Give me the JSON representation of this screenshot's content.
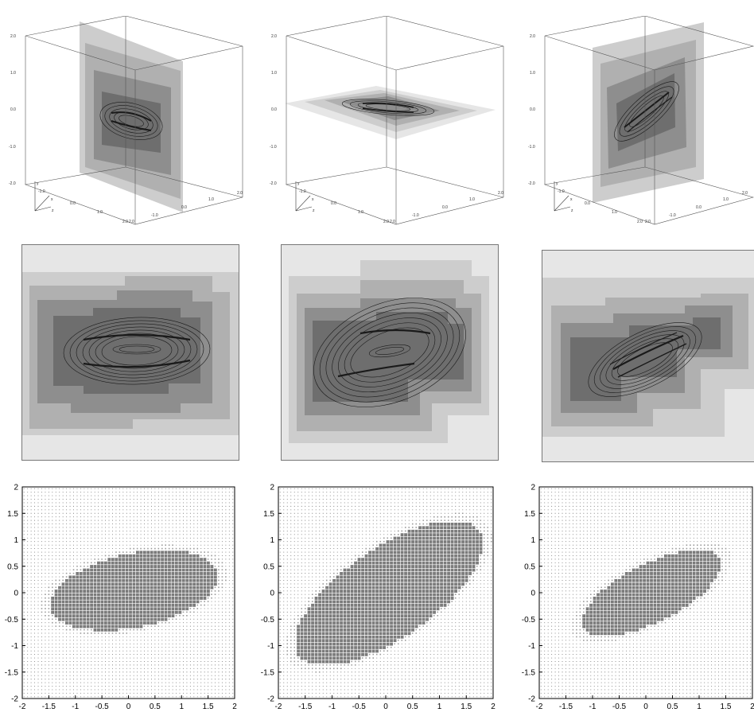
{
  "figure": {
    "rows": [
      {
        "row": "3d-slice-views",
        "panels": 3
      },
      {
        "row": "contour-slice-views",
        "panels": 3
      },
      {
        "row": "dot-density-plots",
        "panels": 3
      }
    ]
  },
  "axis3d": {
    "y_label": "y",
    "x_label": "x",
    "z_label": "z",
    "vertical_ticks": [
      "2.0",
      "1.0",
      "0.0",
      "-1.0",
      "-2.0"
    ],
    "depth_ticks": [
      "-1.0",
      "0.0",
      "1.0",
      "2.0"
    ],
    "front_ticks": [
      "-1.0",
      "0.0",
      "1.0",
      "2.0"
    ],
    "corner_label": "2.0",
    "corner_label2": "2.0"
  },
  "colors": {
    "shade_1": "#e6e6e6",
    "shade_2": "#cdcdcd",
    "shade_3": "#b0b0b0",
    "shade_4": "#8e8e8e",
    "shade_5": "#6e6e6e",
    "contour": "#1a1a1a",
    "dot_light": "#777777",
    "blob": "#7b7b7b"
  },
  "chart_data": [
    {
      "type": "scatter",
      "panel": "bottom-left",
      "xlim": [
        -2,
        2
      ],
      "ylim": [
        -2,
        2
      ],
      "x_ticks": [
        "-2",
        "-1.5",
        "-1",
        "-0.5",
        "0",
        "0.5",
        "1",
        "1.5",
        "2"
      ],
      "y_ticks": [
        "2",
        "1.5",
        "1",
        "0.5",
        "0",
        "-0.5",
        "-1",
        "-1.5",
        "-2"
      ],
      "dense_region": {
        "center": [
          0.1,
          0.05
        ],
        "semi_axes": [
          1.6,
          0.7
        ],
        "angle_deg": 12
      },
      "halo_scale": 1.12,
      "grid": false
    },
    {
      "type": "scatter",
      "panel": "bottom-middle",
      "xlim": [
        -2,
        2
      ],
      "ylim": [
        -2,
        2
      ],
      "x_ticks": [
        "-2",
        "-1.5",
        "-1",
        "-0.5",
        "0",
        "0.5",
        "1",
        "1.5",
        "2"
      ],
      "y_ticks": [
        "2",
        "1.5",
        "1",
        "0.5",
        "0",
        "-0.5",
        "-1",
        "-1.5",
        "-2"
      ],
      "dense_region": {
        "center": [
          0.05,
          0.0
        ],
        "semi_axes": [
          2.05,
          0.85
        ],
        "angle_deg": 35
      },
      "halo_scale": 1.1,
      "grid": false
    },
    {
      "type": "scatter",
      "panel": "bottom-right",
      "xlim": [
        -2,
        2
      ],
      "ylim": [
        -2,
        2
      ],
      "x_ticks": [
        "-2",
        "-1.5",
        "-1",
        "-0.5",
        "0",
        "0.5",
        "1",
        "1.5",
        "2"
      ],
      "y_ticks": [
        "2",
        "1.5",
        "1",
        "0.5",
        "0",
        "-0.5",
        "-1",
        "-1.5",
        "-2"
      ],
      "dense_region": {
        "center": [
          0.1,
          0.0
        ],
        "semi_axes": [
          1.45,
          0.55
        ],
        "angle_deg": 27
      },
      "halo_scale": 1.15,
      "grid": false
    }
  ]
}
